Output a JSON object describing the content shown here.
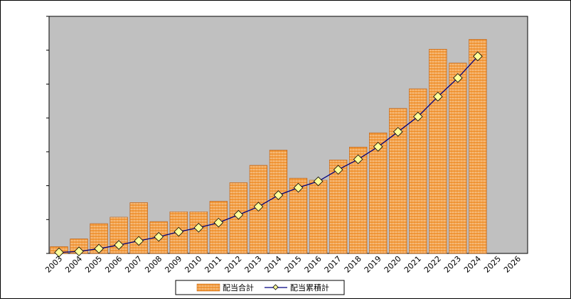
{
  "chart_data": {
    "type": "bar",
    "categories": [
      "2003",
      "2004",
      "2005",
      "2006",
      "2007",
      "2008",
      "2009",
      "2010",
      "2011",
      "2012",
      "2013",
      "2014",
      "2015",
      "2016",
      "2017",
      "2018",
      "2019",
      "2020",
      "2021",
      "2022",
      "2023",
      "2024",
      "2025",
      "2026"
    ],
    "series": [
      {
        "name": "配当合計",
        "type": "bar",
        "color": "#f28c28",
        "values": [
          2,
          4.3,
          8.8,
          10.7,
          15,
          9.4,
          12.3,
          12.3,
          15.4,
          20.9,
          26,
          30.5,
          22.2,
          21.6,
          27.6,
          31.4,
          35.6,
          42.8,
          48.6,
          60.3,
          56.2,
          63.2,
          null,
          null
        ]
      },
      {
        "name": "配当累積計",
        "type": "line",
        "color": "#000080",
        "marker_color": "#ffff99",
        "values": [
          0.3,
          0.6,
          1.4,
          2.5,
          3.7,
          4.9,
          6.4,
          7.6,
          9.1,
          11.4,
          13.8,
          17.2,
          19.4,
          21.3,
          24.7,
          27.8,
          31.5,
          35.9,
          40.4,
          46.3,
          51.8,
          58.2,
          null,
          null
        ]
      }
    ],
    "ylim": [
      0,
      70
    ],
    "yticks": [
      0,
      10,
      20,
      30,
      40,
      50,
      60,
      70
    ],
    "show_tick_labels_y": false,
    "grid": false,
    "plot_background": "#c0c0c0",
    "legend_position": "bottom-center"
  }
}
